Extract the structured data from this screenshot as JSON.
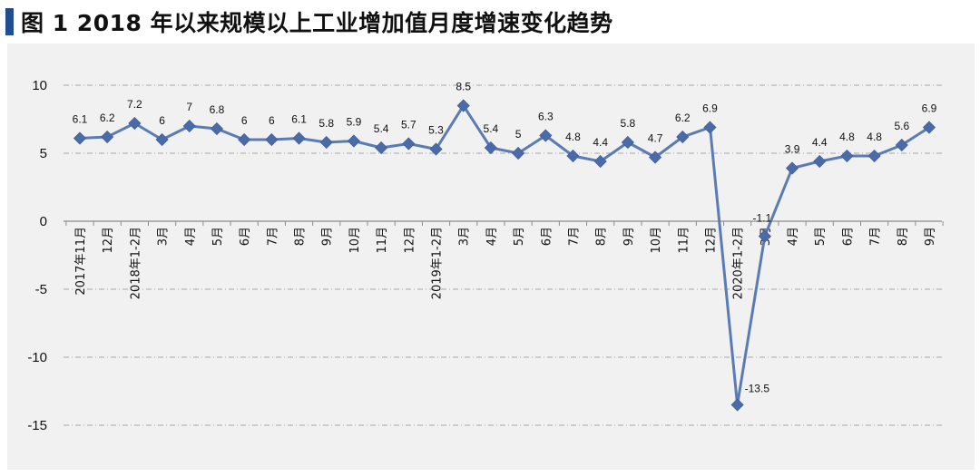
{
  "header": {
    "title": "图 1  2018 年以来规模以上工业增加值月度增速变化趋势"
  },
  "colors": {
    "title_mark": "#1f4e91",
    "series": "#5b7bb5",
    "marker": "#4a6aa8",
    "panel_bg": "#f1f1f1",
    "grid": "#a6a6a6"
  },
  "chart_data": {
    "type": "line",
    "categories": [
      "2017年11月",
      "12月",
      "2018年1-2月",
      "3月",
      "4月",
      "5月",
      "6月",
      "7月",
      "8月",
      "9月",
      "10月",
      "11月",
      "12月",
      "2019年1-2月",
      "3月",
      "4月",
      "5月",
      "6月",
      "7月",
      "8月",
      "9月",
      "10月",
      "11月",
      "12月",
      "2020年1-2月",
      "3月",
      "4月",
      "5月",
      "6月",
      "7月",
      "8月",
      "9月"
    ],
    "values": [
      6.1,
      6.2,
      7.2,
      6,
      7,
      6.8,
      6,
      6,
      6.1,
      5.8,
      5.9,
      5.4,
      5.7,
      5.3,
      8.5,
      5.4,
      5,
      6.3,
      4.8,
      4.4,
      5.8,
      4.7,
      6.2,
      6.9,
      -13.5,
      -1.1,
      3.9,
      4.4,
      4.8,
      4.8,
      5.6,
      6.9
    ],
    "labels": [
      "6.1",
      "6.2",
      "7.2",
      "6",
      "7",
      "6.8",
      "6",
      "6",
      "6.1",
      "5.8",
      "5.9",
      "5.4",
      "5.7",
      "5.3",
      "8.5",
      "5.4",
      "5",
      "6.3",
      "4.8",
      "4.4",
      "5.8",
      "4.7",
      "6.2",
      "6.9",
      "-13.5",
      "-1.1",
      "3.9",
      "4.4",
      "4.8",
      "4.8",
      "5.6",
      "6.9"
    ],
    "yticks": [
      "10",
      "5",
      "0",
      "-5",
      "-10",
      "-15"
    ],
    "ylim": [
      -15,
      10
    ],
    "grid": true,
    "marker": "diamond"
  }
}
